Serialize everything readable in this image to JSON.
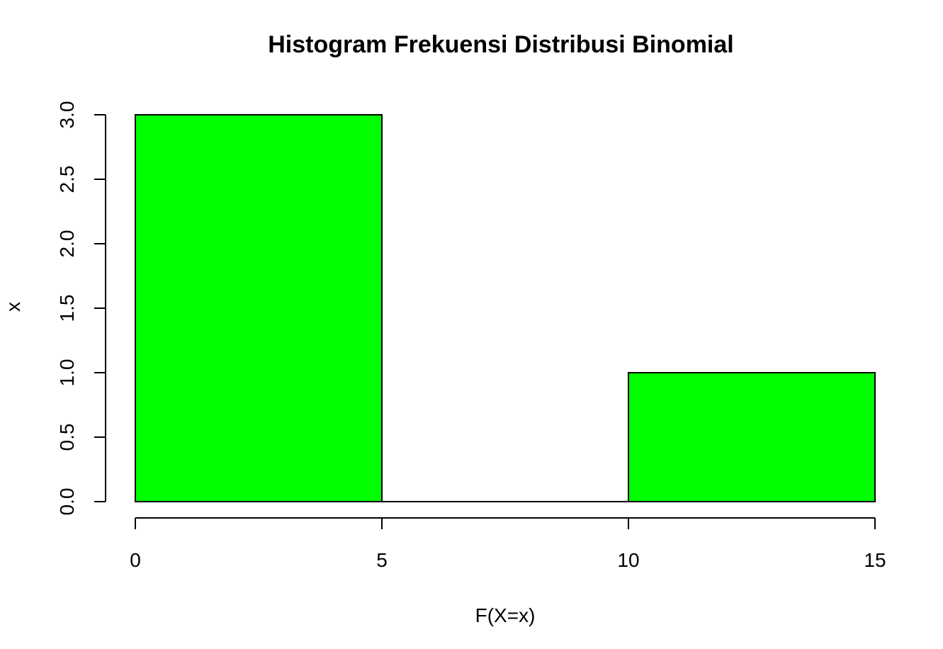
{
  "chart_data": {
    "type": "bar",
    "title": "Histogram Frekuensi Distribusi Binomial",
    "xlabel": "F(X=x)",
    "ylabel": "x",
    "bins": [
      {
        "start": 0,
        "end": 5,
        "value": 3
      },
      {
        "start": 5,
        "end": 10,
        "value": 0
      },
      {
        "start": 10,
        "end": 15,
        "value": 1
      }
    ],
    "xlim": [
      0,
      15
    ],
    "ylim": [
      0,
      3
    ],
    "x_ticks": [
      0,
      5,
      10,
      15
    ],
    "y_ticks": [
      0.0,
      0.5,
      1.0,
      1.5,
      2.0,
      2.5,
      3.0
    ],
    "y_tick_labels": [
      "0.0",
      "0.5",
      "1.0",
      "1.5",
      "2.0",
      "2.5",
      "3.0"
    ],
    "bar_color": "#00ff00",
    "grid": false,
    "legend": "none"
  }
}
